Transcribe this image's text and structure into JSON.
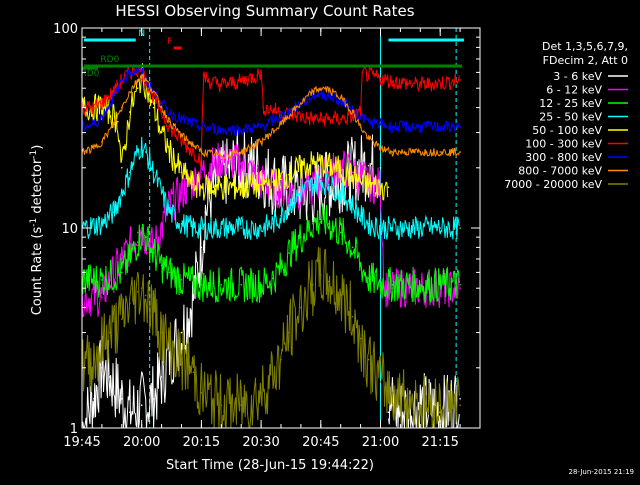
{
  "chart_data": {
    "type": "line",
    "title": "HESSI Observing Summary Count Rates",
    "xlabel": "Start Time (28-Jun-15 19:44:22)",
    "ylabel": "Count Rate (s⁻¹ detector⁻¹)",
    "ylabel_main": "Count Rate (s",
    "ylabel_sup1": "-1",
    "ylabel_mid": " detector",
    "ylabel_sup2": "-1",
    "ylabel_end": ")",
    "yscale": "log",
    "ylim": [
      1,
      100
    ],
    "xlim_minutes": [
      0,
      100
    ],
    "x_ticks": [
      {
        "label": "19:45",
        "minutes": 0
      },
      {
        "label": "20:00",
        "minutes": 15
      },
      {
        "label": "20:15",
        "minutes": 30
      },
      {
        "label": "20:30",
        "minutes": 45
      },
      {
        "label": "20:45",
        "minutes": 60
      },
      {
        "label": "21:00",
        "minutes": 75
      },
      {
        "label": "21:15",
        "minutes": 90
      }
    ],
    "y_ticks": [
      {
        "label": "1",
        "value": 1
      },
      {
        "label": "10",
        "value": 10
      },
      {
        "label": "100",
        "value": 100
      }
    ],
    "legend": {
      "header": [
        "Det 1,3,5,6,7,9,",
        "FDecim 2, Att 0"
      ],
      "placement": "right"
    },
    "series": [
      {
        "name": "3 - 6 keV",
        "color": "#ffffff",
        "x": [
          0,
          3,
          5,
          7,
          10,
          12,
          15,
          18,
          20,
          22,
          25,
          28,
          30,
          31,
          33,
          35,
          38,
          40,
          44,
          48,
          50,
          53,
          55,
          58,
          60,
          62,
          65,
          68,
          70,
          72,
          75,
          76,
          77,
          78,
          80,
          85,
          90,
          95
        ],
        "values": [
          1,
          1.4,
          2,
          1.8,
          1.4,
          1.2,
          1.3,
          1.4,
          1.8,
          2.3,
          3.0,
          4.5,
          8.0,
          12,
          16,
          18,
          20,
          21,
          20,
          17,
          16,
          15.5,
          15,
          15,
          15.5,
          16.5,
          18,
          19,
          20,
          20.5,
          20,
          null,
          1.2,
          1.3,
          1.2,
          1.3,
          1.2,
          1.4
        ]
      },
      {
        "name": "6 - 12 keV",
        "color": "#ff00ff",
        "x": [
          0,
          5,
          7,
          10,
          12,
          14,
          15,
          16,
          18,
          20,
          22,
          25,
          28,
          30,
          35,
          40,
          45,
          50,
          55,
          58,
          60,
          62,
          65,
          68,
          70,
          72,
          75,
          76,
          78,
          85,
          90,
          95
        ],
        "values": [
          4.5,
          4.5,
          5.5,
          7,
          8,
          9.5,
          10,
          9,
          8,
          10,
          13,
          15,
          17,
          19,
          22,
          21,
          17,
          15.5,
          15,
          16,
          17.5,
          19,
          20,
          19,
          18,
          17,
          16,
          5,
          5,
          5,
          5,
          5
        ]
      },
      {
        "name": "12 - 25 keV",
        "color": "#00ff00",
        "x": [
          0,
          5,
          10,
          12,
          14,
          15,
          16,
          18,
          20,
          22,
          25,
          28,
          30,
          35,
          40,
          45,
          48,
          50,
          52,
          55,
          58,
          60,
          62,
          65,
          68,
          70,
          72,
          75,
          78,
          85,
          90,
          95
        ],
        "values": [
          5.5,
          5.5,
          6,
          7,
          8.5,
          9.5,
          9,
          7.5,
          6.5,
          6,
          5.5,
          5.3,
          5.2,
          5.2,
          5.2,
          5.2,
          5.6,
          6.3,
          7.5,
          9,
          10.5,
          11,
          10.5,
          9.5,
          8,
          6.5,
          5.6,
          5.3,
          5.2,
          5.2,
          5.2,
          5.2
        ]
      },
      {
        "name": "25 - 50 keV",
        "color": "#00ffff",
        "x": [
          0,
          5,
          8,
          10,
          12,
          14,
          15,
          16,
          18,
          20,
          22,
          25,
          28,
          30,
          35,
          40,
          45,
          48,
          50,
          52,
          55,
          58,
          60,
          62,
          65,
          68,
          70,
          72,
          75,
          78,
          85,
          90,
          95
        ],
        "values": [
          10,
          10.5,
          12,
          15,
          19,
          24,
          26,
          24,
          19,
          15,
          12,
          10.5,
          10,
          10,
          10,
          10,
          10,
          10.5,
          11.5,
          13,
          15,
          16.5,
          17,
          16.5,
          15,
          13,
          11.5,
          10.5,
          10,
          10,
          10,
          10,
          10
        ]
      },
      {
        "name": "50 - 100 keV",
        "color": "#ffff00",
        "x": [
          0,
          3,
          5,
          7,
          9,
          10,
          12,
          14,
          15,
          16,
          18,
          20,
          22,
          25,
          28,
          30,
          35,
          40,
          45,
          48,
          50,
          52,
          55,
          58,
          60,
          62,
          65,
          68,
          70,
          72,
          75,
          77
        ],
        "values": [
          40,
          40,
          40,
          38,
          34,
          20,
          38,
          50,
          58,
          52,
          40,
          30,
          24,
          19,
          16.5,
          16,
          16,
          16,
          16.5,
          17,
          17.5,
          18.5,
          20,
          21,
          21,
          20.5,
          19.5,
          18,
          17,
          16.5,
          16,
          16
        ]
      },
      {
        "name": "100 - 300 keV",
        "color": "#ff0000",
        "x": [
          0,
          3,
          5,
          8,
          10,
          12,
          14,
          15,
          16,
          18,
          20,
          22,
          25,
          28,
          30,
          30.5,
          32,
          35,
          40,
          44,
          45,
          45.5,
          48,
          52,
          55,
          58,
          60,
          62,
          65,
          68,
          70,
          70.5,
          72,
          75,
          78,
          85,
          90,
          95
        ],
        "values": [
          40,
          40,
          42,
          48,
          55,
          60,
          62,
          60,
          55,
          45,
          38,
          32,
          27,
          24,
          22,
          58,
          54,
          52,
          54,
          58,
          60,
          40,
          39,
          37,
          36,
          35,
          35,
          35,
          35,
          36,
          38,
          60,
          58,
          56,
          54,
          52,
          53,
          55
        ]
      },
      {
        "name": "300 - 800 keV",
        "color": "#0000ff",
        "x": [
          0,
          3,
          5,
          8,
          10,
          12,
          14,
          15,
          16,
          18,
          20,
          22,
          25,
          28,
          30,
          35,
          40,
          45,
          50,
          55,
          58,
          60,
          62,
          65,
          68,
          70,
          72,
          75,
          78,
          85,
          90,
          95
        ],
        "values": [
          32,
          33,
          36,
          45,
          55,
          60,
          62,
          60,
          55,
          48,
          42,
          38,
          35,
          33,
          32,
          31,
          31,
          32,
          36,
          42,
          46,
          47,
          46,
          43,
          39,
          36,
          34,
          33,
          32,
          32,
          32,
          32
        ]
      },
      {
        "name": "800 - 7000 keV",
        "color": "#ff8c00",
        "x": [
          0,
          3,
          5,
          8,
          10,
          12,
          14,
          15,
          16,
          18,
          20,
          22,
          25,
          28,
          30,
          35,
          40,
          45,
          50,
          55,
          58,
          60,
          62,
          65,
          68,
          70,
          72,
          75,
          78,
          85,
          90,
          95
        ],
        "values": [
          24,
          25,
          27,
          33,
          40,
          48,
          55,
          58,
          55,
          48,
          40,
          34,
          29,
          26,
          24,
          23,
          24,
          27,
          33,
          42,
          48,
          50,
          49,
          45,
          38,
          32,
          28,
          25,
          24,
          24,
          24,
          24
        ]
      },
      {
        "name": "7000 - 20000 keV",
        "color": "#808000",
        "x": [
          0,
          3,
          5,
          7,
          10,
          12,
          14,
          15,
          16,
          18,
          20,
          22,
          25,
          28,
          30,
          35,
          40,
          45,
          50,
          52,
          55,
          58,
          60,
          62,
          65,
          68,
          70,
          72,
          75,
          78,
          85,
          90,
          95
        ],
        "values": [
          2,
          2.2,
          2.6,
          3,
          3.5,
          4.2,
          4.8,
          5,
          4.6,
          3.8,
          3.0,
          2.5,
          2.2,
          1.9,
          1.5,
          1.3,
          1.3,
          1.5,
          2.2,
          3,
          4,
          5.2,
          5.8,
          5.4,
          4.6,
          3.6,
          2.8,
          2.2,
          1.7,
          1.5,
          1.3,
          1.3,
          1.3
        ]
      }
    ],
    "flag_bars": [
      {
        "label": "N",
        "color": "#00ffff",
        "x_start": 0.5,
        "x_end": 13.5,
        "level": 100,
        "label_at": 15
      },
      {
        "label": "",
        "color": "#00ffff",
        "x_start": 77,
        "x_end": 96,
        "level": 100,
        "label_at": null
      },
      {
        "label": "F",
        "color": "#ff0000",
        "x_start": 23,
        "x_end": 25,
        "level": 100,
        "label_at": 22
      },
      {
        "label": "RD0",
        "color": "#008000",
        "x_start": 0.5,
        "x_end": 95.5,
        "level": 100,
        "label_at": 7
      },
      {
        "label": "RD0",
        "color": "#008000",
        "x_start": 0,
        "x_end": 4,
        "level": 100,
        "label_at": 2
      }
    ],
    "saa_lines_minutes": [
      0,
      17,
      75,
      94
    ],
    "corner_stamp": "28-Jun-2015 21:19"
  }
}
